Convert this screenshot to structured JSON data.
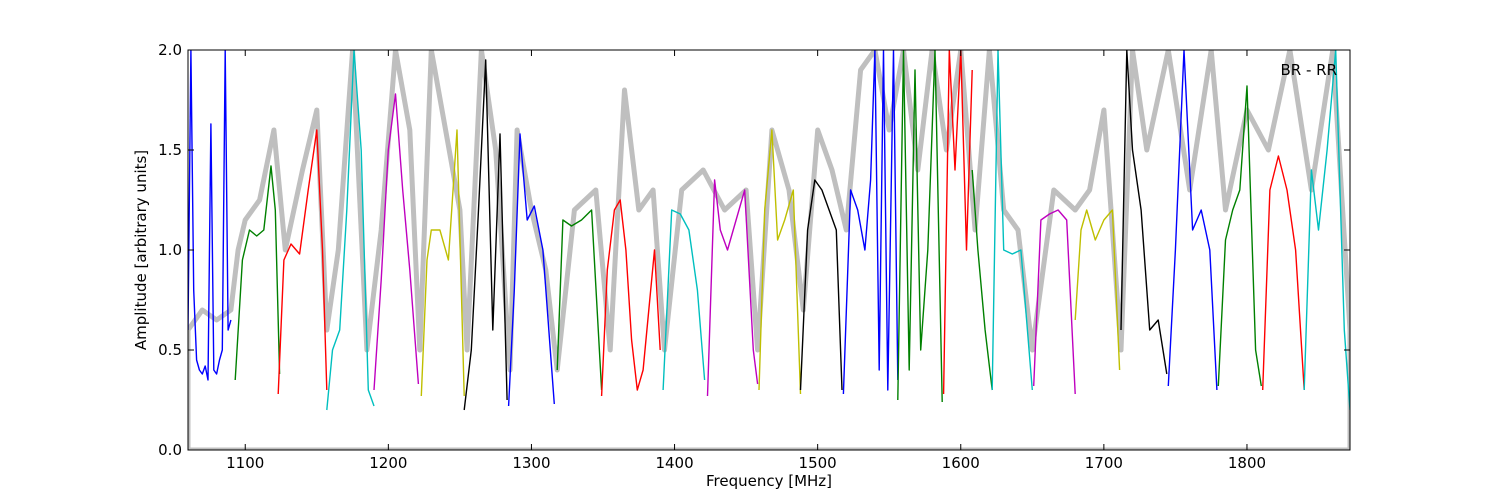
{
  "chart_data": {
    "type": "line",
    "title": "",
    "annotation": "BR - RR",
    "xlabel": "Frequency [MHz]",
    "ylabel": "Amplitude [arbitrary units]",
    "xlim": [
      1060,
      1872
    ],
    "ylim": [
      0,
      2.0
    ],
    "x_ticks": [
      1100,
      1200,
      1300,
      1400,
      1500,
      1600,
      1700,
      1800
    ],
    "x_tick_labels": [
      "1100",
      "1200",
      "1300",
      "1400",
      "1500",
      "1600",
      "1700",
      "1800"
    ],
    "y_ticks": [
      0.0,
      0.5,
      1.0,
      1.5,
      2.0
    ],
    "y_tick_labels": [
      "0.0",
      "0.5",
      "1.0",
      "1.5",
      "2.0"
    ],
    "grid": false,
    "envelope": {
      "color": "#bfbfbf",
      "x": [
        1060,
        1070,
        1080,
        1090,
        1095,
        1100,
        1110,
        1120,
        1128,
        1140,
        1150,
        1157,
        1165,
        1175,
        1185,
        1195,
        1205,
        1215,
        1222,
        1230,
        1240,
        1250,
        1255,
        1265,
        1275,
        1285,
        1290,
        1300,
        1310,
        1318,
        1330,
        1345,
        1355,
        1365,
        1375,
        1385,
        1393,
        1405,
        1420,
        1435,
        1450,
        1458,
        1468,
        1480,
        1490,
        1500,
        1510,
        1520,
        1530,
        1540,
        1550,
        1560,
        1570,
        1580,
        1590,
        1600,
        1610,
        1620,
        1630,
        1640,
        1650,
        1665,
        1680,
        1690,
        1700,
        1712,
        1720,
        1730,
        1745,
        1760,
        1775,
        1785,
        1800,
        1815,
        1830,
        1845,
        1860,
        1872
      ],
      "y": [
        0.6,
        0.7,
        0.65,
        0.7,
        1.0,
        1.15,
        1.25,
        1.6,
        1.0,
        1.4,
        1.7,
        0.6,
        1.0,
        2.0,
        0.5,
        1.1,
        2.0,
        1.6,
        0.5,
        2.0,
        1.6,
        1.2,
        0.5,
        2.0,
        1.5,
        0.4,
        1.6,
        1.2,
        0.9,
        0.4,
        1.2,
        1.3,
        0.5,
        1.8,
        1.2,
        1.3,
        0.5,
        1.3,
        1.4,
        1.2,
        1.3,
        0.5,
        1.6,
        1.3,
        0.7,
        1.6,
        1.4,
        1.1,
        1.9,
        2.0,
        1.6,
        2.0,
        1.4,
        2.0,
        1.5,
        2.0,
        1.1,
        2.0,
        1.2,
        1.1,
        0.5,
        1.3,
        1.2,
        1.3,
        1.7,
        0.5,
        2.0,
        1.5,
        2.0,
        1.3,
        2.0,
        1.2,
        1.7,
        1.5,
        2.0,
        1.3,
        2.0,
        0.6
      ]
    },
    "series": [
      {
        "color": "#0000ff",
        "x": [
          1060,
          1062,
          1064,
          1066,
          1068,
          1070,
          1072,
          1074,
          1076,
          1078,
          1080,
          1082,
          1084,
          1086,
          1088,
          1090
        ],
        "y": [
          0.6,
          2.0,
          0.8,
          0.45,
          0.4,
          0.38,
          0.42,
          0.35,
          1.63,
          0.4,
          0.38,
          0.45,
          0.5,
          2.0,
          0.6,
          0.65
        ]
      },
      {
        "color": "#008000",
        "x": [
          1093,
          1098,
          1103,
          1108,
          1113,
          1118,
          1121,
          1124
        ],
        "y": [
          0.35,
          0.95,
          1.1,
          1.07,
          1.1,
          1.42,
          1.2,
          0.38
        ]
      },
      {
        "color": "#ff0000",
        "x": [
          1123,
          1127,
          1132,
          1138,
          1144,
          1150,
          1154,
          1157
        ],
        "y": [
          0.28,
          0.95,
          1.03,
          0.98,
          1.3,
          1.6,
          1.0,
          0.3
        ]
      },
      {
        "color": "#00bfbf",
        "x": [
          1157,
          1161,
          1166,
          1171,
          1176,
          1181,
          1186,
          1190
        ],
        "y": [
          0.2,
          0.5,
          0.6,
          1.2,
          2.0,
          1.5,
          0.3,
          0.22
        ]
      },
      {
        "color": "#bf00bf",
        "x": [
          1190,
          1195,
          1200,
          1205,
          1210,
          1215,
          1221
        ],
        "y": [
          0.3,
          0.85,
          1.5,
          1.78,
          1.3,
          0.9,
          0.33
        ]
      },
      {
        "color": "#bfbf00",
        "x": [
          1223,
          1227,
          1230,
          1236,
          1242,
          1248,
          1253
        ],
        "y": [
          0.27,
          0.95,
          1.1,
          1.1,
          0.95,
          1.6,
          0.27
        ]
      },
      {
        "color": "#000000",
        "x": [
          1253,
          1258,
          1263,
          1268,
          1273,
          1278,
          1283
        ],
        "y": [
          0.2,
          0.5,
          1.2,
          1.95,
          0.6,
          1.58,
          0.25
        ]
      },
      {
        "color": "#0000ff",
        "x": [
          1284,
          1288,
          1292,
          1297,
          1302,
          1308,
          1316
        ],
        "y": [
          0.22,
          0.8,
          1.58,
          1.15,
          1.22,
          1.0,
          0.23
        ]
      },
      {
        "color": "#008000",
        "x": [
          1318,
          1322,
          1328,
          1335,
          1342,
          1349
        ],
        "y": [
          0.4,
          1.15,
          1.12,
          1.15,
          1.2,
          0.3
        ]
      },
      {
        "color": "#ff0000",
        "x": [
          1349,
          1353,
          1358,
          1362,
          1366,
          1370,
          1374,
          1378,
          1382,
          1386,
          1390
        ],
        "y": [
          0.27,
          0.9,
          1.2,
          1.25,
          1.0,
          0.55,
          0.3,
          0.4,
          0.7,
          1.0,
          0.5
        ]
      },
      {
        "color": "#00bfbf",
        "x": [
          1392,
          1398,
          1404,
          1410,
          1416,
          1421
        ],
        "y": [
          0.3,
          1.2,
          1.18,
          1.1,
          0.8,
          0.35
        ]
      },
      {
        "color": "#bf00bf",
        "x": [
          1423,
          1428,
          1432,
          1437,
          1443,
          1449,
          1455,
          1458
        ],
        "y": [
          0.27,
          1.35,
          1.1,
          1.0,
          1.15,
          1.3,
          0.5,
          0.33
        ]
      },
      {
        "color": "#bfbf00",
        "x": [
          1459,
          1463,
          1468,
          1472,
          1477,
          1483,
          1488
        ],
        "y": [
          0.3,
          1.2,
          1.6,
          1.05,
          1.15,
          1.3,
          0.28
        ]
      },
      {
        "color": "#000000",
        "x": [
          1488,
          1493,
          1498,
          1503,
          1508,
          1513,
          1517
        ],
        "y": [
          0.3,
          1.1,
          1.35,
          1.3,
          1.2,
          1.1,
          0.3
        ]
      },
      {
        "color": "#0000ff",
        "x": [
          1518,
          1523,
          1528,
          1533,
          1537,
          1540,
          1543,
          1546,
          1549,
          1553,
          1556
        ],
        "y": [
          0.28,
          1.3,
          1.2,
          1.0,
          1.35,
          2.0,
          0.4,
          2.0,
          0.3,
          2.0,
          0.35
        ]
      },
      {
        "color": "#008000",
        "x": [
          1556,
          1560,
          1564,
          1568,
          1572,
          1577,
          1582,
          1587
        ],
        "y": [
          0.25,
          2.0,
          0.4,
          1.9,
          0.5,
          1.0,
          2.0,
          0.24
        ]
      },
      {
        "color": "#ff0000",
        "x": [
          1588,
          1592,
          1596,
          1600,
          1604,
          1608
        ],
        "y": [
          0.28,
          2.0,
          1.4,
          2.0,
          1.0,
          1.9
        ]
      },
      {
        "color": "#008000",
        "x": [
          1608,
          1612,
          1617,
          1622
        ],
        "y": [
          1.4,
          1.0,
          0.6,
          0.3
        ]
      },
      {
        "color": "#00bfbf",
        "x": [
          1622,
          1626,
          1630,
          1636,
          1642,
          1650
        ],
        "y": [
          0.3,
          2.0,
          1.0,
          0.98,
          1.0,
          0.3
        ]
      },
      {
        "color": "#bf00bf",
        "x": [
          1651,
          1656,
          1662,
          1668,
          1674,
          1680
        ],
        "y": [
          0.32,
          1.15,
          1.18,
          1.2,
          1.15,
          0.28
        ]
      },
      {
        "color": "#bfbf00",
        "x": [
          1680,
          1684,
          1688,
          1694,
          1700,
          1706,
          1711
        ],
        "y": [
          0.65,
          1.1,
          1.2,
          1.05,
          1.15,
          1.2,
          0.4
        ]
      },
      {
        "color": "#000000",
        "x": [
          1712,
          1716,
          1720,
          1726,
          1732,
          1738,
          1744
        ],
        "y": [
          0.6,
          2.0,
          1.5,
          1.2,
          0.6,
          0.65,
          0.38
        ]
      },
      {
        "color": "#0000ff",
        "x": [
          1745,
          1750,
          1756,
          1762,
          1768,
          1774,
          1779
        ],
        "y": [
          0.32,
          1.0,
          2.0,
          1.1,
          1.2,
          1.0,
          0.3
        ]
      },
      {
        "color": "#008000",
        "x": [
          1780,
          1785,
          1790,
          1795,
          1800,
          1806,
          1810
        ],
        "y": [
          0.32,
          1.05,
          1.2,
          1.3,
          1.82,
          0.5,
          0.32
        ]
      },
      {
        "color": "#ff0000",
        "x": [
          1811,
          1816,
          1822,
          1828,
          1834,
          1840
        ],
        "y": [
          0.3,
          1.3,
          1.47,
          1.3,
          1.0,
          0.3
        ]
      },
      {
        "color": "#00bfbf",
        "x": [
          1840,
          1845,
          1850,
          1856,
          1862,
          1868,
          1872
        ],
        "y": [
          0.3,
          1.4,
          1.1,
          1.5,
          2.0,
          0.6,
          0.2
        ]
      }
    ]
  }
}
